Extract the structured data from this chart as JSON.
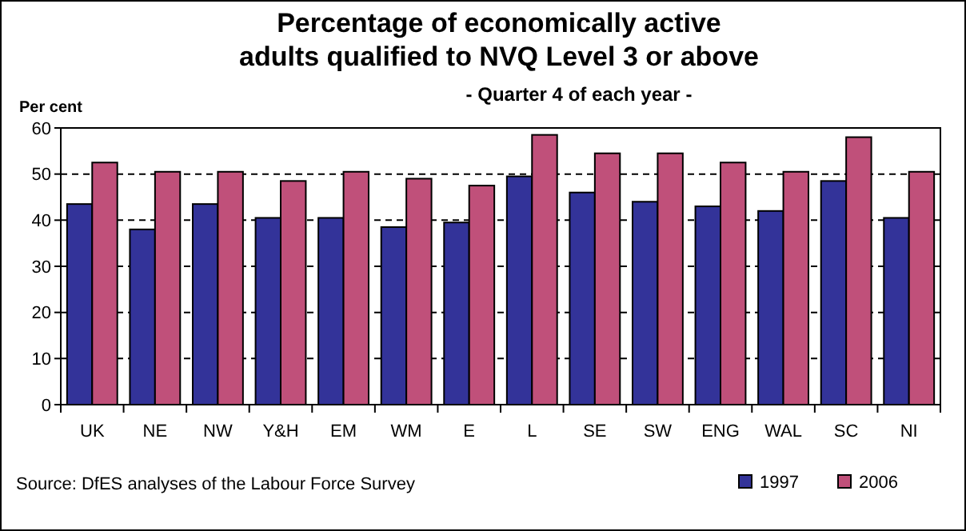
{
  "chart_data": {
    "type": "bar",
    "title": "Percentage of economically active\nadults qualified to NVQ Level 3 or above",
    "subtitle": "- Quarter 4 of each year -",
    "ylabel": "Per cent",
    "categories": [
      "UK",
      "NE",
      "NW",
      "Y&H",
      "EM",
      "WM",
      "E",
      "L",
      "SE",
      "SW",
      "ENG",
      "WAL",
      "SC",
      "NI"
    ],
    "series": [
      {
        "name": "1997",
        "color": "#333399",
        "values": [
          43.5,
          38,
          43.5,
          40.5,
          40.5,
          38.5,
          39.5,
          49.5,
          46,
          44,
          43,
          42,
          48.5,
          40.5
        ]
      },
      {
        "name": "2006",
        "color": "#c0507a",
        "values": [
          52.5,
          50.5,
          50.5,
          48.5,
          50.5,
          49,
          47.5,
          58.5,
          54.5,
          54.5,
          52.5,
          50.5,
          58,
          50.5
        ]
      }
    ],
    "ylim": [
      0,
      60
    ],
    "yticks": [
      0,
      10,
      20,
      30,
      40,
      50,
      60
    ],
    "grid": "y",
    "legend": "bottom right",
    "annotations": [
      "Source: DfES analyses of the Labour Force Survey"
    ]
  }
}
